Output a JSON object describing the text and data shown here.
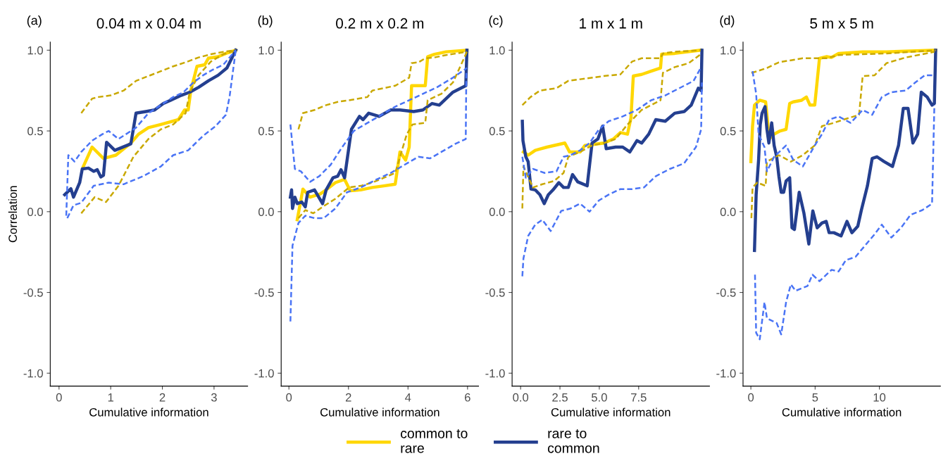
{
  "chart_data": [
    {
      "type": "line",
      "title": "0.04 m x 0.04 m",
      "xlabel": "Cumulative information",
      "ylabel": "Correlation",
      "annotations": [
        "(a)"
      ],
      "legend": "bottom",
      "xlim": [
        -0.17,
        3.65
      ],
      "xticks": [
        0,
        1,
        2,
        3
      ],
      "ylim": [
        -1.08,
        1.05
      ],
      "yticks": [
        {
          "value": -1,
          "label": "-1.0"
        },
        {
          "value": -0.5,
          "label": "-0.5"
        },
        {
          "value": 0,
          "label": "0.0"
        },
        {
          "value": 0.5,
          "label": "0.5"
        },
        {
          "value": 1,
          "label": "1.0"
        }
      ],
      "series": [
        {
          "color": "#c9a800",
          "line_style": "dashed",
          "x": [
            0.43,
            0.64,
            0.76,
            1.0,
            1.25,
            1.49,
            1.73,
            1.97,
            2.21,
            2.45,
            2.7,
            2.94,
            3.18,
            3.42
          ],
          "values": [
            0.61,
            0.7,
            0.71,
            0.72,
            0.75,
            0.81,
            0.84,
            0.87,
            0.9,
            0.925,
            0.955,
            0.975,
            0.99,
            1.0
          ]
        },
        {
          "color": "#c9a800",
          "line_style": "dashed",
          "x": [
            0.43,
            0.69,
            0.91,
            1.15,
            1.44,
            1.73,
            1.97,
            2.21,
            2.45,
            2.53,
            2.7,
            2.94,
            3.18,
            3.42
          ],
          "values": [
            -0.01,
            0.09,
            0.06,
            0.16,
            0.34,
            0.45,
            0.51,
            0.54,
            0.61,
            0.74,
            0.845,
            0.93,
            0.975,
            1.0
          ]
        },
        {
          "color": "#4a74f5",
          "line_style": "dashed",
          "x": [
            0.14,
            0.18,
            0.3,
            0.43,
            0.64,
            0.84,
            0.96,
            1.15,
            1.49,
            1.73,
            1.97,
            2.21,
            2.41,
            2.6,
            2.79,
            2.98,
            3.18,
            3.42
          ],
          "values": [
            -0.025,
            0.35,
            0.31,
            0.37,
            0.44,
            0.48,
            0.5,
            0.45,
            0.52,
            0.61,
            0.66,
            0.71,
            0.74,
            0.8,
            0.845,
            0.88,
            0.91,
            1.0
          ]
        },
        {
          "color": "#4a74f5",
          "line_style": "dashed",
          "x": [
            0.16,
            0.28,
            0.43,
            0.67,
            0.96,
            1.25,
            1.63,
            1.97,
            2.21,
            2.5,
            2.79,
            3.03,
            3.23,
            3.3,
            3.42
          ],
          "values": [
            -0.04,
            0.04,
            0.055,
            0.16,
            0.18,
            0.17,
            0.22,
            0.28,
            0.35,
            0.38,
            0.47,
            0.53,
            0.6,
            0.71,
            1.0
          ]
        },
        {
          "name": "common to\nrare",
          "color": "#ffd700",
          "line_style": "solid",
          "x": [
            0.47,
            0.64,
            0.86,
            1.1,
            1.39,
            1.54,
            1.73,
            1.97,
            2.31,
            2.43,
            2.5,
            2.55,
            2.67,
            2.82,
            2.89,
            3.08,
            3.23,
            3.42
          ],
          "values": [
            0.28,
            0.4,
            0.33,
            0.35,
            0.425,
            0.48,
            0.52,
            0.54,
            0.57,
            0.63,
            0.63,
            0.75,
            0.9,
            0.91,
            0.95,
            0.96,
            0.98,
            1.0
          ]
        },
        {
          "name": "rare to\ncommon",
          "color": "#243f8f",
          "line_style": "solid",
          "x": [
            0.11,
            0.23,
            0.28,
            0.4,
            0.45,
            0.57,
            0.67,
            0.74,
            0.81,
            0.86,
            0.92,
            1.08,
            1.39,
            1.49,
            1.68,
            1.85,
            2.02,
            2.16,
            2.36,
            2.53,
            2.7,
            2.89,
            3.08,
            3.25,
            3.42
          ],
          "values": [
            0.105,
            0.142,
            0.09,
            0.18,
            0.265,
            0.27,
            0.25,
            0.26,
            0.215,
            0.225,
            0.43,
            0.38,
            0.42,
            0.61,
            0.62,
            0.63,
            0.67,
            0.69,
            0.72,
            0.74,
            0.77,
            0.81,
            0.845,
            0.89,
            1.0
          ]
        }
      ]
    },
    {
      "type": "line",
      "title": "0.2 m x 0.2 m",
      "xlabel": "Cumulative information",
      "annotations": [
        "(b)"
      ],
      "xlim": [
        -0.26,
        6.37
      ],
      "xticks": [
        0,
        2,
        4,
        6
      ],
      "ylim": [
        -1.08,
        1.05
      ],
      "yticks": [
        {
          "value": -1,
          "label": "-1.0"
        },
        {
          "value": -0.5,
          "label": "-0.5"
        },
        {
          "value": 0,
          "label": "0.0"
        },
        {
          "value": 0.5,
          "label": "0.5"
        },
        {
          "value": 1,
          "label": "1.0"
        }
      ],
      "series": [
        {
          "color": "#c9a800",
          "line_style": "dashed",
          "x": [
            0.32,
            0.47,
            0.86,
            1.25,
            1.64,
            2.02,
            2.64,
            2.8,
            3.19,
            3.57,
            4.04,
            4.12,
            4.35,
            4.58,
            4.89,
            5.28,
            5.98
          ],
          "values": [
            0.51,
            0.61,
            0.63,
            0.66,
            0.68,
            0.69,
            0.71,
            0.75,
            0.765,
            0.78,
            0.83,
            0.92,
            0.925,
            0.95,
            0.955,
            0.97,
            0.99
          ]
        },
        {
          "color": "#c9a800",
          "line_style": "dashed",
          "x": [
            0.32,
            0.55,
            0.82,
            1.13,
            1.56,
            2.02,
            2.41,
            2.8,
            3.19,
            3.57,
            3.96,
            4.15,
            4.58,
            4.66,
            5.12,
            5.51,
            5.98
          ],
          "values": [
            -0.04,
            0.01,
            -0.01,
            0.03,
            0.08,
            0.15,
            0.16,
            0.18,
            0.21,
            0.24,
            0.48,
            0.54,
            0.55,
            0.69,
            0.73,
            0.8,
            0.99
          ]
        },
        {
          "color": "#4a74f5",
          "line_style": "dashed",
          "x": [
            0.05,
            0.2,
            0.4,
            0.71,
            1.02,
            1.4,
            1.79,
            2.18,
            2.64,
            3.11,
            3.57,
            4.04,
            4.5,
            4.97,
            5.51,
            5.98
          ],
          "values": [
            0.54,
            0.265,
            0.25,
            0.185,
            0.22,
            0.29,
            0.4,
            0.5,
            0.55,
            0.6,
            0.65,
            0.69,
            0.73,
            0.77,
            0.83,
            0.89
          ]
        },
        {
          "color": "#4a74f5",
          "line_style": "dashed",
          "x": [
            0.05,
            0.12,
            0.32,
            0.55,
            0.86,
            1.17,
            1.56,
            1.95,
            2.41,
            2.95,
            3.42,
            3.88,
            4.35,
            4.74,
            5.12,
            5.59,
            5.94,
            5.96
          ],
          "values": [
            -0.68,
            -0.21,
            -0.07,
            -0.025,
            -0.04,
            -0.04,
            0.02,
            0.12,
            0.15,
            0.2,
            0.24,
            0.29,
            0.34,
            0.33,
            0.37,
            0.42,
            0.45,
            0.87
          ]
        },
        {
          "color": "#ffd700",
          "line_style": "solid",
          "x": [
            0.28,
            0.47,
            0.71,
            1.05,
            1.25,
            1.56,
            1.87,
            2.06,
            2.41,
            2.8,
            3.19,
            3.57,
            3.73,
            3.92,
            4.04,
            4.12,
            4.58,
            4.66,
            4.89,
            5.28,
            5.98
          ],
          "values": [
            -0.05,
            0.14,
            0.09,
            0.11,
            0.135,
            0.18,
            0.2,
            0.13,
            0.135,
            0.15,
            0.16,
            0.17,
            0.37,
            0.32,
            0.4,
            0.78,
            0.78,
            0.96,
            0.975,
            0.99,
            1.0
          ]
        },
        {
          "color": "#243f8f",
          "line_style": "solid",
          "x": [
            0.05,
            0.09,
            0.12,
            0.2,
            0.28,
            0.43,
            0.55,
            0.63,
            0.86,
            1.13,
            1.25,
            1.48,
            1.64,
            1.75,
            1.87,
            2.1,
            2.37,
            2.49,
            2.68,
            3.03,
            3.42,
            3.73,
            4.19,
            4.5,
            4.81,
            5.05,
            5.51,
            5.94,
            5.98
          ],
          "values": [
            0.09,
            0.135,
            0.02,
            0.09,
            0.05,
            0.06,
            0.03,
            0.12,
            0.135,
            0.05,
            0.135,
            0.21,
            0.22,
            0.26,
            0.21,
            0.51,
            0.59,
            0.57,
            0.61,
            0.59,
            0.63,
            0.63,
            0.62,
            0.63,
            0.67,
            0.66,
            0.74,
            0.78,
            1.0
          ]
        }
      ]
    },
    {
      "type": "line",
      "title": "1 m x 1 m",
      "xlabel": "Cumulative information",
      "annotations": [
        "(c)"
      ],
      "xlim": [
        -0.54,
        12.0
      ],
      "xticks": [
        {
          "value": 0,
          "label": "0.0"
        },
        {
          "value": 2.5,
          "label": "2.5"
        },
        {
          "value": 5,
          "label": "5.0"
        },
        {
          "value": 7.5,
          "label": "7.5"
        }
      ],
      "ylim": [
        -1.08,
        1.05
      ],
      "yticks": [
        {
          "value": -1,
          "label": "-1.0"
        },
        {
          "value": -0.5,
          "label": "-0.5"
        },
        {
          "value": 0,
          "label": "0.0"
        },
        {
          "value": 0.5,
          "label": "0.5"
        },
        {
          "value": 1,
          "label": "1.0"
        }
      ],
      "series": [
        {
          "color": "#c9a800",
          "line_style": "dashed",
          "x": [
            0.11,
            0.63,
            1.23,
            2.28,
            3.03,
            3.78,
            5.29,
            6.34,
            7.09,
            7.69,
            8.29,
            8.89,
            9.04,
            9.79,
            11.44
          ],
          "values": [
            0.66,
            0.71,
            0.75,
            0.765,
            0.81,
            0.82,
            0.84,
            0.85,
            0.93,
            0.95,
            0.95,
            0.95,
            0.98,
            0.99,
            1.0
          ]
        },
        {
          "color": "#c9a800",
          "line_style": "dashed",
          "x": [
            0.11,
            0.18,
            0.78,
            1.38,
            2.13,
            2.73,
            3.03,
            3.78,
            4.54,
            5.29,
            6.04,
            6.79,
            7.69,
            8.29,
            8.89,
            9.04,
            9.79,
            10.69,
            11.44
          ],
          "values": [
            0.02,
            0.28,
            0.15,
            0.17,
            0.19,
            0.24,
            0.34,
            0.37,
            0.41,
            0.425,
            0.45,
            0.54,
            0.63,
            0.66,
            0.69,
            0.86,
            0.895,
            0.92,
            0.975
          ]
        },
        {
          "color": "#4a74f5",
          "line_style": "dashed",
          "x": [
            0.11,
            0.33,
            0.78,
            1.53,
            2.28,
            2.73,
            3.18,
            3.78,
            4.38,
            4.98,
            5.59,
            6.49,
            7.39,
            8.29,
            9.19,
            10.09,
            10.99,
            11.44
          ],
          "values": [
            0.34,
            0.21,
            0.265,
            0.24,
            0.25,
            0.34,
            0.35,
            0.38,
            0.425,
            0.51,
            0.56,
            0.59,
            0.63,
            0.69,
            0.72,
            0.765,
            0.81,
            0.89
          ]
        },
        {
          "color": "#4a74f5",
          "line_style": "dashed",
          "x": [
            0.11,
            0.18,
            0.48,
            0.93,
            1.38,
            1.91,
            2.58,
            3.18,
            3.78,
            4.38,
            4.98,
            5.59,
            6.34,
            7.09,
            7.84,
            8.59,
            9.49,
            10.39,
            11.14,
            11.47,
            11.52
          ],
          "values": [
            -0.4,
            -0.29,
            -0.15,
            -0.08,
            -0.05,
            -0.12,
            0.005,
            0.02,
            0.05,
            0.0,
            0.07,
            0.105,
            0.14,
            0.14,
            0.15,
            0.22,
            0.265,
            0.3,
            0.4,
            0.51,
            0.8
          ]
        },
        {
          "color": "#ffd700",
          "line_style": "solid",
          "x": [
            0.18,
            0.48,
            0.93,
            1.68,
            2.81,
            3.11,
            3.78,
            4.08,
            5.29,
            5.89,
            6.34,
            6.79,
            7.01,
            7.16,
            7.69,
            8.29,
            8.89,
            8.96,
            9.79,
            11.44
          ],
          "values": [
            0.37,
            0.35,
            0.38,
            0.4,
            0.425,
            0.37,
            0.37,
            0.41,
            0.425,
            0.45,
            0.49,
            0.48,
            0.58,
            0.84,
            0.85,
            0.87,
            0.89,
            0.975,
            0.98,
            1.0
          ]
        },
        {
          "color": "#243f8f",
          "line_style": "solid",
          "x": [
            0.11,
            0.15,
            0.33,
            0.48,
            0.66,
            0.93,
            1.23,
            1.5,
            1.76,
            2.06,
            2.43,
            2.73,
            3.03,
            3.3,
            3.63,
            4.23,
            4.54,
            4.91,
            5.21,
            5.44,
            6.04,
            6.49,
            6.94,
            7.39,
            7.69,
            8.14,
            8.59,
            9.19,
            9.79,
            10.39,
            10.84,
            11.29,
            11.47,
            11.52
          ],
          "values": [
            0.56,
            0.44,
            0.34,
            0.31,
            0.14,
            0.135,
            0.105,
            0.05,
            0.105,
            0.135,
            0.18,
            0.15,
            0.15,
            0.23,
            0.185,
            0.16,
            0.425,
            0.45,
            0.53,
            0.39,
            0.4,
            0.4,
            0.37,
            0.44,
            0.425,
            0.48,
            0.57,
            0.56,
            0.61,
            0.62,
            0.66,
            0.765,
            0.75,
            1.0
          ]
        }
      ]
    },
    {
      "type": "line",
      "title": "5 m x 5 m",
      "xlabel": "Cumulative information",
      "annotations": [
        "(d)"
      ],
      "xlim": [
        -0.61,
        14.75
      ],
      "xticks": [
        0,
        5,
        10
      ],
      "ylim": [
        -1.08,
        1.05
      ],
      "yticks": [
        {
          "value": -1,
          "label": "-1.0"
        },
        {
          "value": -0.5,
          "label": "-0.5"
        },
        {
          "value": 0,
          "label": "0.0"
        },
        {
          "value": 0.5,
          "label": "0.5"
        },
        {
          "value": 1,
          "label": "1.0"
        }
      ],
      "series": [
        {
          "color": "#c9a800",
          "line_style": "dashed",
          "x": [
            0.04,
            0.5,
            1.25,
            2.18,
            4.04,
            5.9,
            6.83,
            8.7,
            10.56,
            14.38
          ],
          "values": [
            0.86,
            0.87,
            0.89,
            0.925,
            0.95,
            0.95,
            0.97,
            0.975,
            0.98,
            1.0
          ]
        },
        {
          "color": "#c9a800",
          "line_style": "dashed",
          "x": [
            0.04,
            0.13,
            0.5,
            1.15,
            1.25,
            2.18,
            3.11,
            4.04,
            4.97,
            5.53,
            6.46,
            7.21,
            8.42,
            8.7,
            9.63,
            10.56,
            12.05,
            14.28
          ],
          "values": [
            -0.04,
            0.15,
            0.18,
            0.16,
            0.31,
            0.35,
            0.31,
            0.35,
            0.41,
            0.53,
            0.55,
            0.57,
            0.6,
            0.84,
            0.845,
            0.92,
            0.955,
            0.99
          ]
        },
        {
          "color": "#4a74f5",
          "line_style": "dashed",
          "x": [
            0.13,
            0.41,
            0.6,
            1.06,
            1.25,
            1.81,
            2.74,
            3.3,
            4.04,
            4.97,
            5.53,
            6.09,
            6.83,
            7.76,
            8.7,
            9.44,
            10.19,
            10.93,
            12.05,
            12.79,
            13.54,
            14.28
          ],
          "values": [
            0.87,
            0.73,
            0.48,
            0.4,
            0.25,
            0.34,
            0.41,
            0.32,
            0.28,
            0.41,
            0.48,
            0.57,
            0.59,
            0.55,
            0.63,
            0.6,
            0.71,
            0.74,
            0.75,
            0.8,
            0.845,
            0.845
          ]
        },
        {
          "color": "#4a74f5",
          "line_style": "dashed",
          "x": [
            0.32,
            0.41,
            0.69,
            1.06,
            1.25,
            2.01,
            2.36,
            2.74,
            3.11,
            3.48,
            4.41,
            4.79,
            5.34,
            6.28,
            6.83,
            7.39,
            8.14,
            8.88,
            9.63,
            10.19,
            10.93,
            11.68,
            12.42,
            13.35,
            14.1,
            14.28
          ],
          "values": [
            -0.39,
            -0.75,
            -0.79,
            -0.56,
            -0.66,
            -0.69,
            -0.76,
            -0.56,
            -0.45,
            -0.49,
            -0.46,
            -0.39,
            -0.43,
            -0.36,
            -0.37,
            -0.3,
            -0.28,
            -0.21,
            -0.14,
            -0.08,
            -0.16,
            -0.1,
            -0.02,
            0.01,
            0.05,
            0.66
          ]
        },
        {
          "color": "#ffd700",
          "line_style": "solid",
          "x": [
            0.0,
            0.13,
            0.28,
            0.69,
            1.15,
            1.43,
            1.81,
            2.27,
            2.74,
            3.02,
            3.3,
            3.95,
            4.32,
            4.6,
            4.97,
            5.34,
            5.9,
            6.27,
            6.83,
            8.7,
            10.56,
            14.38
          ],
          "values": [
            0.31,
            0.53,
            0.66,
            0.69,
            0.68,
            0.45,
            0.48,
            0.5,
            0.51,
            0.67,
            0.68,
            0.69,
            0.71,
            0.66,
            0.66,
            0.95,
            0.96,
            0.955,
            0.98,
            0.99,
            0.99,
            1.0
          ]
        },
        {
          "color": "#243f8f",
          "line_style": "solid",
          "x": [
            0.28,
            0.41,
            0.6,
            0.73,
            0.87,
            1.1,
            1.25,
            1.4,
            1.62,
            1.81,
            2.01,
            2.18,
            2.36,
            2.55,
            2.74,
            3.02,
            3.2,
            3.39,
            3.76,
            4.13,
            4.51,
            4.82,
            5.16,
            5.53,
            5.86,
            6.09,
            6.46,
            7.02,
            7.48,
            7.86,
            8.32,
            8.6,
            9.07,
            9.44,
            9.81,
            10.37,
            11.02,
            11.49,
            11.86,
            12.23,
            12.61,
            12.98,
            13.26,
            13.72,
            14.1,
            14.28,
            14.38
          ],
          "values": [
            -0.24,
            0.105,
            0.32,
            0.54,
            0.61,
            0.65,
            0.51,
            0.425,
            0.55,
            0.41,
            0.34,
            0.22,
            0.12,
            0.12,
            0.19,
            0.21,
            -0.1,
            -0.11,
            0.12,
            -0.01,
            -0.2,
            0.005,
            -0.1,
            -0.07,
            -0.06,
            -0.13,
            -0.13,
            -0.15,
            -0.06,
            -0.13,
            -0.09,
            0.01,
            0.16,
            0.33,
            0.34,
            0.31,
            0.28,
            0.41,
            0.64,
            0.64,
            0.425,
            0.48,
            0.74,
            0.71,
            0.66,
            0.67,
            1.0
          ]
        }
      ]
    }
  ]
}
